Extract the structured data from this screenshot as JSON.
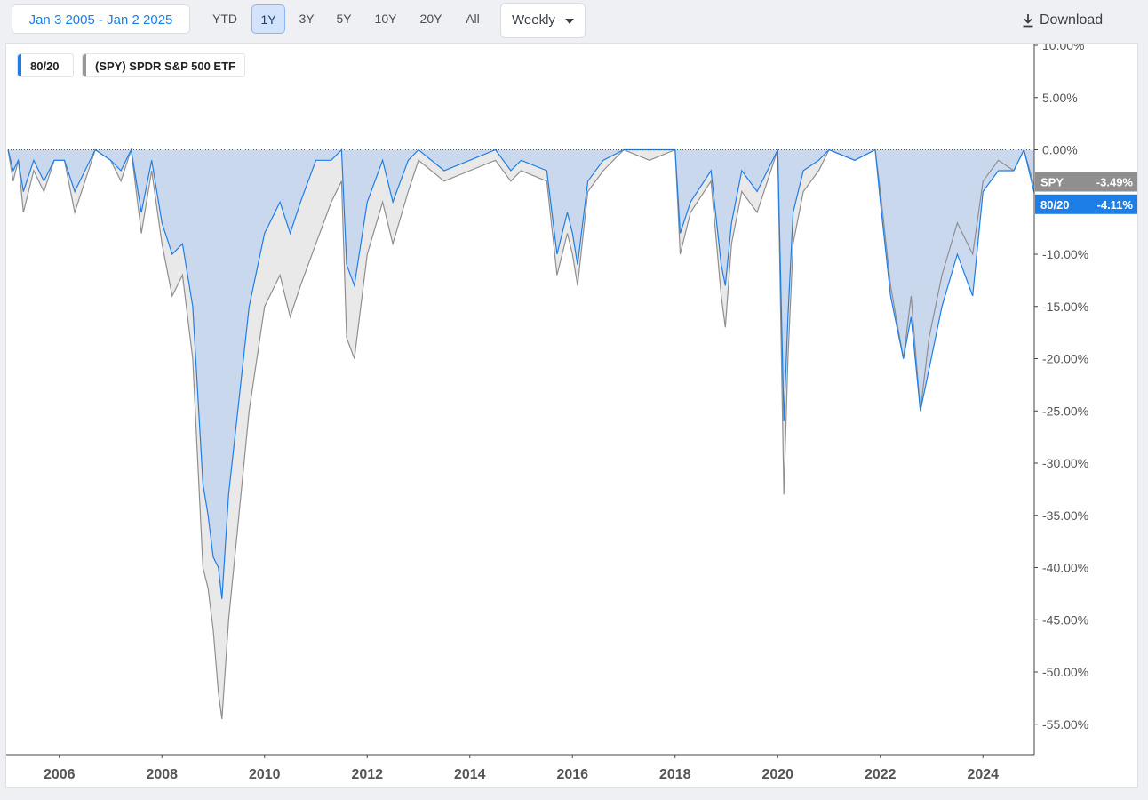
{
  "toolbar": {
    "date_range": "Jan 3 2005 - Jan 2 2025",
    "periods": [
      "YTD",
      "1Y",
      "3Y",
      "5Y",
      "10Y",
      "20Y",
      "All"
    ],
    "active_period": "1Y",
    "frequency": "Weekly",
    "download_label": "Download"
  },
  "legend": [
    {
      "label": "80/20",
      "color": "#1e7ee8"
    },
    {
      "label": "(SPY) SPDR S&P 500 ETF",
      "color": "#999999"
    }
  ],
  "end_labels": [
    {
      "name": "SPY",
      "value": "-3.49%",
      "color": "#8f8f8f"
    },
    {
      "name": "80/20",
      "value": "-4.11%",
      "color": "#1e7ee8"
    }
  ],
  "chart_data": {
    "type": "area",
    "title": "",
    "xlabel": "",
    "ylabel": "",
    "xlim": [
      2005.0,
      2025.0
    ],
    "ylim": [
      -58,
      10
    ],
    "y_ticks": [
      10,
      5,
      0,
      -10,
      -15,
      -20,
      -25,
      -30,
      -35,
      -40,
      -45,
      -50,
      -55
    ],
    "y_tick_labels": [
      "10.00%",
      "5.00%",
      "0.00%",
      "-10.00%",
      "-15.00%",
      "-20.00%",
      "-25.00%",
      "-30.00%",
      "-35.00%",
      "-40.00%",
      "-45.00%",
      "-50.00%",
      "-55.00%"
    ],
    "x_ticks": [
      2006,
      2008,
      2010,
      2012,
      2014,
      2016,
      2018,
      2020,
      2022,
      2024
    ],
    "x_tick_labels": [
      "2006",
      "2008",
      "2010",
      "2012",
      "2014",
      "2016",
      "2018",
      "2020",
      "2022",
      "2024"
    ],
    "grid": false,
    "legend_position": "top-left",
    "series": [
      {
        "name": "(SPY) SPDR S&P 500 ETF",
        "color": "#8f8f8f",
        "fill": "#e9e9e9",
        "x": [
          2005.0,
          2005.1,
          2005.2,
          2005.3,
          2005.5,
          2005.7,
          2005.9,
          2006.1,
          2006.3,
          2006.5,
          2006.7,
          2007.0,
          2007.2,
          2007.4,
          2007.6,
          2007.8,
          2008.0,
          2008.2,
          2008.4,
          2008.6,
          2008.8,
          2008.9,
          2009.0,
          2009.1,
          2009.17,
          2009.3,
          2009.5,
          2009.7,
          2010.0,
          2010.3,
          2010.5,
          2010.7,
          2011.0,
          2011.3,
          2011.5,
          2011.6,
          2011.75,
          2012.0,
          2012.3,
          2012.5,
          2012.8,
          2013.0,
          2013.5,
          2014.0,
          2014.5,
          2014.8,
          2015.0,
          2015.5,
          2015.7,
          2015.9,
          2016.0,
          2016.1,
          2016.3,
          2016.6,
          2017.0,
          2017.5,
          2018.0,
          2018.1,
          2018.3,
          2018.7,
          2018.9,
          2018.98,
          2019.1,
          2019.3,
          2019.6,
          2020.0,
          2020.12,
          2020.2,
          2020.3,
          2020.5,
          2020.8,
          2021.0,
          2021.5,
          2021.9,
          2022.0,
          2022.2,
          2022.45,
          2022.6,
          2022.78,
          2022.95,
          2023.2,
          2023.5,
          2023.8,
          2024.0,
          2024.3,
          2024.6,
          2024.8,
          2025.0
        ],
        "values": [
          0,
          -3,
          -1,
          -6,
          -2,
          -4,
          -1,
          -1,
          -6,
          -3,
          0,
          -1,
          -3,
          0,
          -8,
          -2,
          -9,
          -14,
          -12,
          -20,
          -40,
          -42,
          -46,
          -52,
          -54.5,
          -45,
          -35,
          -25,
          -15,
          -12,
          -16,
          -13,
          -9,
          -5,
          -3,
          -18,
          -20,
          -10,
          -5,
          -9,
          -4,
          -1,
          -3,
          -2,
          -1,
          -3,
          -2,
          -3,
          -12,
          -8,
          -10,
          -13,
          -4,
          -2,
          0,
          -1,
          0,
          -10,
          -6,
          -3,
          -14,
          -17,
          -9,
          -4,
          -6,
          0,
          -33,
          -20,
          -9,
          -4,
          -2,
          0,
          -1,
          0,
          -4,
          -13,
          -20,
          -14,
          -25,
          -18,
          -12,
          -7,
          -10,
          -3,
          -1,
          -2,
          0,
          -3.49
        ]
      },
      {
        "name": "80/20",
        "color": "#1e7ee8",
        "fill": "#c7d6ee",
        "x": [
          2005.0,
          2005.1,
          2005.2,
          2005.3,
          2005.5,
          2005.7,
          2005.9,
          2006.1,
          2006.3,
          2006.5,
          2006.7,
          2007.0,
          2007.2,
          2007.4,
          2007.6,
          2007.8,
          2008.0,
          2008.2,
          2008.4,
          2008.6,
          2008.8,
          2008.9,
          2009.0,
          2009.1,
          2009.17,
          2009.3,
          2009.5,
          2009.7,
          2010.0,
          2010.3,
          2010.5,
          2010.7,
          2011.0,
          2011.3,
          2011.5,
          2011.6,
          2011.75,
          2012.0,
          2012.3,
          2012.5,
          2012.8,
          2013.0,
          2013.5,
          2014.0,
          2014.5,
          2014.8,
          2015.0,
          2015.5,
          2015.7,
          2015.9,
          2016.0,
          2016.1,
          2016.3,
          2016.6,
          2017.0,
          2017.5,
          2018.0,
          2018.1,
          2018.3,
          2018.7,
          2018.9,
          2018.98,
          2019.1,
          2019.3,
          2019.6,
          2020.0,
          2020.12,
          2020.2,
          2020.3,
          2020.5,
          2020.8,
          2021.0,
          2021.5,
          2021.9,
          2022.0,
          2022.2,
          2022.45,
          2022.6,
          2022.78,
          2022.95,
          2023.2,
          2023.5,
          2023.8,
          2024.0,
          2024.3,
          2024.6,
          2024.8,
          2025.0
        ],
        "values": [
          0,
          -2,
          -1,
          -4,
          -1,
          -3,
          -1,
          -1,
          -4,
          -2,
          0,
          -1,
          -2,
          0,
          -6,
          -1,
          -7,
          -10,
          -9,
          -15,
          -32,
          -35,
          -39,
          -40,
          -43,
          -33,
          -24,
          -15,
          -8,
          -5,
          -8,
          -5,
          -1,
          -1,
          0,
          -11,
          -13,
          -5,
          -1,
          -5,
          -1,
          0,
          -2,
          -1,
          0,
          -2,
          -1,
          -2,
          -10,
          -6,
          -8,
          -11,
          -3,
          -1,
          0,
          0,
          0,
          -8,
          -5,
          -2,
          -11,
          -13,
          -7,
          -2,
          -4,
          0,
          -26,
          -16,
          -6,
          -2,
          -1,
          0,
          -1,
          0,
          -5,
          -14,
          -20,
          -16,
          -25,
          -21,
          -15,
          -10,
          -14,
          -4,
          -2,
          -2,
          0,
          -4.11
        ]
      }
    ]
  }
}
